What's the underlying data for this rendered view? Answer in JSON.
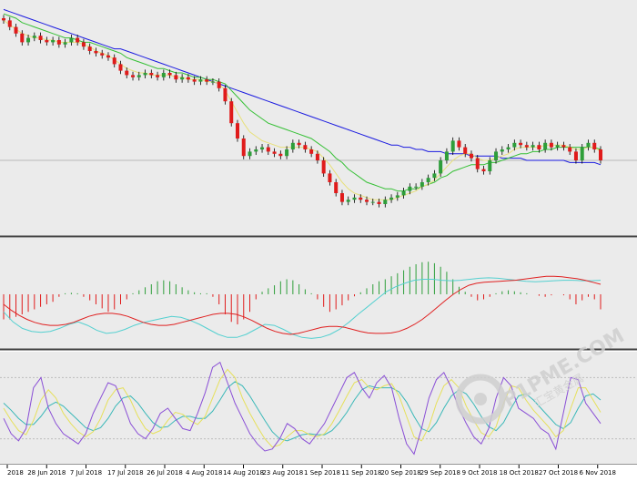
{
  "watermark": {
    "brand": "P1PME.COM",
    "sub": "汇宝黄金属"
  },
  "chart_data": {
    "type": "line",
    "subtype": "candlestick-with-indicators",
    "title": "",
    "x_tick_labels": [
      "2018",
      "28 Jun 2018",
      "7 Jul 2018",
      "17 Jul 2018",
      "26 Jul 2018",
      "4 Aug 2018",
      "14 Aug 2018",
      "23 Aug 2018",
      "1 Sep 2018",
      "11 Sep 2018",
      "20 Sep 2018",
      "29 Sep 2018",
      "9 Oct 2018",
      "18 Oct 2018",
      "27 Oct 2018",
      "6 Nov 2018"
    ],
    "grid": false,
    "colors": {
      "bull": "#2e9e3a",
      "bear": "#e01b1b",
      "ma_fast": "#e8e07a",
      "ma_mid": "#35c035",
      "ma_slow": "#1a1ae0",
      "macd_signal": "#e02020",
      "macd_line": "#54d0d0",
      "stoch_k": "#8a4fd6",
      "stoch_d": "#e6e05a",
      "stoch_ma": "#3ab8b8",
      "panel_bg": "#ebebeb",
      "separator": "#404040"
    },
    "panels": [
      {
        "name": "price",
        "ylim": [
          0,
          100
        ],
        "close": [
          94,
          91,
          88,
          84,
          86,
          87,
          85,
          84,
          85,
          83,
          84,
          86,
          84,
          82,
          80,
          79,
          78,
          77,
          74,
          71,
          69,
          68,
          69,
          70,
          69,
          68,
          70,
          69,
          67,
          68,
          67,
          66,
          67,
          66,
          66,
          63,
          57,
          47,
          40,
          32,
          34,
          35,
          36,
          34,
          33,
          32,
          35,
          38,
          37,
          35,
          33,
          30,
          24,
          20,
          15,
          11,
          12,
          13,
          12,
          11,
          11,
          10,
          12,
          13,
          14,
          16,
          18,
          18,
          20,
          22,
          24,
          30,
          34,
          39,
          36,
          33,
          31,
          26,
          25,
          30,
          34,
          35,
          36,
          38,
          37,
          36,
          37,
          35,
          38,
          36,
          37,
          36,
          34,
          30,
          36,
          38,
          35,
          30
        ],
        "ma_fast": [
          94,
          92,
          90,
          88,
          87,
          86,
          86,
          85,
          85,
          84,
          84,
          84,
          84,
          83,
          82,
          80,
          79,
          78,
          76,
          74,
          72,
          71,
          70,
          70,
          69,
          69,
          69,
          69,
          68,
          68,
          67,
          67,
          67,
          66,
          66,
          65,
          62,
          57,
          52,
          47,
          43,
          41,
          39,
          38,
          37,
          36,
          36,
          36,
          36,
          36,
          35,
          34,
          31,
          28,
          24,
          20,
          17,
          15,
          14,
          13,
          12,
          12,
          12,
          12,
          13,
          14,
          15,
          16,
          18,
          19,
          21,
          24,
          27,
          30,
          32,
          33,
          33,
          31,
          30,
          30,
          31,
          32,
          33,
          35,
          36,
          36,
          36,
          36,
          37,
          37,
          37,
          37,
          36,
          35,
          35,
          36,
          36,
          34
        ],
        "ma_mid": [
          97,
          96,
          95,
          93,
          92,
          91,
          90,
          89,
          88,
          87,
          86,
          86,
          85,
          84,
          84,
          83,
          82,
          81,
          80,
          79,
          77,
          76,
          75,
          74,
          73,
          72,
          72,
          71,
          70,
          70,
          69,
          68,
          68,
          67,
          67,
          66,
          65,
          62,
          59,
          56,
          53,
          51,
          49,
          47,
          46,
          45,
          44,
          43,
          42,
          41,
          40,
          38,
          36,
          34,
          31,
          29,
          26,
          24,
          22,
          20,
          19,
          18,
          17,
          17,
          16,
          16,
          17,
          17,
          18,
          19,
          20,
          22,
          23,
          25,
          26,
          27,
          28,
          28,
          28,
          29,
          29,
          30,
          31,
          32,
          33,
          33,
          34,
          34,
          35,
          35,
          36,
          36,
          36,
          36,
          36,
          36,
          36,
          35
        ],
        "ma_slow": [
          99,
          98,
          97,
          96,
          95,
          94,
          93,
          92,
          91,
          90,
          89,
          88,
          87,
          86,
          85,
          84,
          83,
          82,
          81,
          81,
          80,
          79,
          78,
          77,
          76,
          75,
          74,
          73,
          72,
          71,
          70,
          69,
          68,
          67,
          66,
          65,
          64,
          63,
          62,
          61,
          60,
          59,
          58,
          57,
          56,
          55,
          54,
          53,
          52,
          51,
          50,
          49,
          48,
          47,
          46,
          45,
          44,
          43,
          42,
          41,
          40,
          39,
          38,
          37,
          37,
          36,
          36,
          35,
          35,
          34,
          34,
          34,
          33,
          33,
          33,
          33,
          32,
          32,
          32,
          32,
          32,
          31,
          31,
          31,
          31,
          30,
          30,
          30,
          30,
          30,
          30,
          30,
          29,
          29,
          29,
          29,
          29,
          28
        ]
      },
      {
        "name": "macd",
        "ylim": [
          -1,
          1
        ],
        "histogram": [
          -0.5,
          -0.5,
          -0.45,
          -0.4,
          -0.35,
          -0.3,
          -0.25,
          -0.2,
          -0.15,
          -0.05,
          0.02,
          0.03,
          0.02,
          -0.05,
          -0.12,
          -0.2,
          -0.28,
          -0.35,
          -0.3,
          -0.2,
          -0.1,
          0.02,
          0.08,
          0.14,
          0.2,
          0.26,
          0.28,
          0.26,
          0.2,
          0.14,
          0.08,
          0.04,
          0.02,
          0.02,
          -0.05,
          -0.2,
          -0.4,
          -0.55,
          -0.6,
          -0.5,
          -0.35,
          -0.1,
          0.05,
          0.12,
          0.18,
          0.26,
          0.3,
          0.28,
          0.2,
          0.1,
          0.02,
          -0.1,
          -0.25,
          -0.35,
          -0.3,
          -0.22,
          -0.12,
          -0.04,
          0.04,
          0.12,
          0.2,
          0.26,
          0.3,
          0.36,
          0.42,
          0.48,
          0.55,
          0.6,
          0.64,
          0.65,
          0.62,
          0.55,
          0.45,
          0.3,
          0.15,
          0.05,
          -0.05,
          -0.12,
          -0.1,
          -0.05,
          0.02,
          0.06,
          0.08,
          0.06,
          0.04,
          0.02,
          0.0,
          -0.03,
          -0.05,
          -0.02,
          0.0,
          -0.02,
          -0.1,
          -0.2,
          -0.12,
          -0.05,
          -0.1,
          -0.3
        ],
        "signal": [
          -0.2,
          -0.32,
          -0.42,
          -0.5,
          -0.56,
          -0.6,
          -0.62,
          -0.62,
          -0.6,
          -0.56,
          -0.5,
          -0.44,
          -0.4,
          -0.38,
          -0.38,
          -0.4,
          -0.44,
          -0.5,
          -0.56,
          -0.6,
          -0.62,
          -0.62,
          -0.6,
          -0.56,
          -0.52,
          -0.48,
          -0.44,
          -0.4,
          -0.38,
          -0.38,
          -0.4,
          -0.45,
          -0.52,
          -0.6,
          -0.68,
          -0.74,
          -0.78,
          -0.8,
          -0.78,
          -0.74,
          -0.7,
          -0.66,
          -0.64,
          -0.64,
          -0.66,
          -0.7,
          -0.74,
          -0.77,
          -0.78,
          -0.78,
          -0.77,
          -0.74,
          -0.68,
          -0.6,
          -0.5,
          -0.38,
          -0.25,
          -0.12,
          0.0,
          0.1,
          0.18,
          0.22,
          0.24,
          0.25,
          0.26,
          0.27,
          0.28,
          0.3,
          0.32,
          0.34,
          0.36,
          0.36,
          0.35,
          0.33,
          0.31,
          0.28,
          0.24,
          0.2
        ],
        "macd": [
          -0.35,
          -0.55,
          -0.68,
          -0.74,
          -0.76,
          -0.74,
          -0.68,
          -0.6,
          -0.55,
          -0.62,
          -0.72,
          -0.78,
          -0.76,
          -0.7,
          -0.62,
          -0.56,
          -0.52,
          -0.48,
          -0.44,
          -0.46,
          -0.52,
          -0.6,
          -0.7,
          -0.8,
          -0.86,
          -0.86,
          -0.8,
          -0.7,
          -0.6,
          -0.62,
          -0.7,
          -0.8,
          -0.86,
          -0.88,
          -0.86,
          -0.8,
          -0.7,
          -0.56,
          -0.4,
          -0.25,
          -0.1,
          0.05,
          0.15,
          0.22,
          0.28,
          0.3,
          0.3,
          0.28,
          0.27,
          0.28,
          0.3,
          0.32,
          0.33,
          0.32,
          0.3,
          0.28,
          0.26,
          0.25,
          0.26,
          0.27,
          0.28,
          0.28,
          0.27,
          0.27,
          0.28
        ]
      },
      {
        "name": "stochastic",
        "ylim": [
          0,
          100
        ],
        "k": [
          40,
          25,
          18,
          30,
          70,
          80,
          50,
          35,
          25,
          20,
          15,
          25,
          45,
          60,
          75,
          72,
          55,
          35,
          25,
          20,
          30,
          45,
          50,
          40,
          30,
          28,
          45,
          65,
          90,
          95,
          75,
          55,
          40,
          25,
          15,
          8,
          10,
          20,
          35,
          30,
          20,
          15,
          25,
          35,
          50,
          65,
          80,
          85,
          70,
          60,
          75,
          82,
          70,
          40,
          15,
          5,
          30,
          60,
          78,
          85,
          70,
          50,
          35,
          22,
          15,
          30,
          60,
          80,
          72,
          50,
          45,
          40,
          30,
          25,
          10,
          45,
          80,
          78,
          55,
          45,
          35
        ],
        "d": [
          50,
          38,
          28,
          24,
          38,
          58,
          68,
          60,
          45,
          35,
          27,
          22,
          27,
          40,
          58,
          68,
          70,
          58,
          42,
          30,
          25,
          28,
          38,
          46,
          44,
          38,
          34,
          42,
          60,
          78,
          88,
          80,
          60,
          45,
          32,
          20,
          12,
          14,
          22,
          28,
          28,
          24,
          22,
          25,
          35,
          48,
          62,
          75,
          78,
          70,
          68,
          72,
          74,
          62,
          42,
          22,
          18,
          32,
          55,
          72,
          78,
          70,
          52,
          38,
          26,
          22,
          32,
          55,
          72,
          70,
          58,
          48,
          40,
          32,
          22,
          28,
          50,
          70,
          70,
          58,
          46
        ],
        "signal": [
          55,
          48,
          40,
          34,
          34,
          42,
          52,
          56,
          52,
          45,
          38,
          31,
          28,
          31,
          40,
          52,
          60,
          62,
          55,
          45,
          36,
          31,
          32,
          38,
          42,
          42,
          40,
          40,
          47,
          58,
          70,
          76,
          72,
          62,
          50,
          38,
          27,
          20,
          18,
          21,
          24,
          25,
          24,
          24,
          28,
          36,
          46,
          58,
          68,
          72,
          70,
          70,
          70,
          66,
          56,
          42,
          30,
          27,
          36,
          50,
          62,
          68,
          64,
          54,
          42,
          32,
          28,
          36,
          50,
          62,
          64,
          58,
          50,
          42,
          34,
          30,
          36,
          50,
          62,
          64,
          58
        ],
        "reference_levels": [
          20,
          80
        ]
      }
    ]
  }
}
